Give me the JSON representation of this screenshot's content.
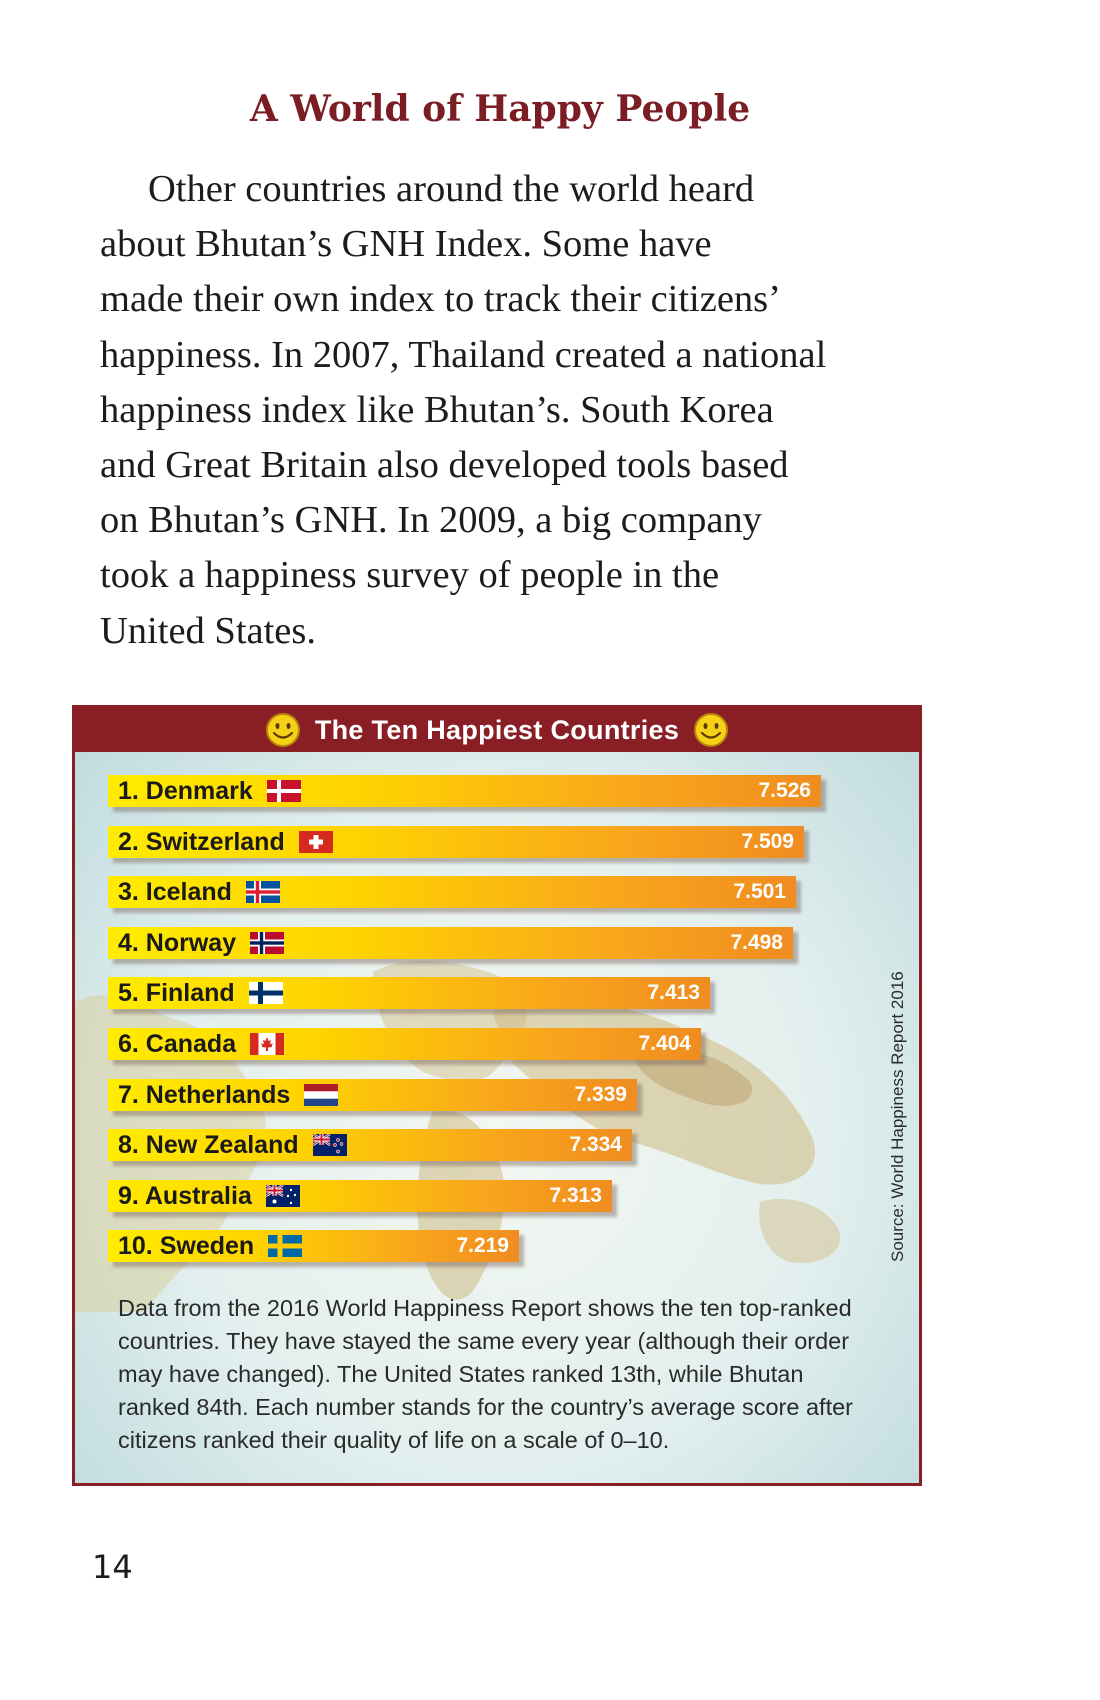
{
  "heading": "A World of Happy People",
  "body_lines": [
    "Other countries around the world heard",
    "about Bhutan’s GNH Index. Some have",
    "made their own index to track their citizens’",
    "happiness. In 2007, Thailand created a national",
    "happiness index like Bhutan’s. South Korea",
    "and Great Britain also developed tools based",
    "on Bhutan’s GNH. In 2009, a big company",
    "took a happiness survey of people in the",
    "United States."
  ],
  "panel": {
    "title": "The Ten Happiest Countries",
    "header_color": "#8a1e25",
    "icons": [
      "smiley-icon",
      "smiley-icon"
    ],
    "source": "Source: World Happiness Report 2016"
  },
  "chart_data": {
    "type": "bar",
    "orientation": "horizontal",
    "title": "The Ten Happiest Countries",
    "categories": [
      "1.  Denmark",
      "2.  Switzerland",
      "3.  Iceland",
      "4.  Norway",
      "5.  Finland",
      "6.  Canada",
      "7.  Netherlands",
      "8.  New Zealand",
      "9.  Australia",
      "10. Sweden"
    ],
    "values": [
      7.526,
      7.509,
      7.501,
      7.498,
      7.413,
      7.404,
      7.339,
      7.334,
      7.313,
      7.219
    ],
    "value_labels": [
      "7.526",
      "7.509",
      "7.501",
      "7.498",
      "7.413",
      "7.404",
      "7.339",
      "7.334",
      "7.313",
      "7.219"
    ],
    "flags": [
      "denmark-flag-icon",
      "switzerland-flag-icon",
      "iceland-flag-icon",
      "norway-flag-icon",
      "finland-flag-icon",
      "canada-flag-icon",
      "netherlands-flag-icon",
      "new-zealand-flag-icon",
      "australia-flag-icon",
      "sweden-flag-icon"
    ],
    "bar_colors": [
      "#ffec00",
      "#f08c20"
    ],
    "grid": false
  },
  "caption_lines": [
    "Data from the 2016 World Happiness Report shows the ten top-ranked",
    "countries. They have stayed the same every year (although their order",
    "may have changed). The United States ranked 13th, while Bhutan",
    "ranked 84th. Each number stands for the country’s average score after",
    "citizens ranked their quality of life on a scale of 0–10."
  ],
  "page_number": "14"
}
